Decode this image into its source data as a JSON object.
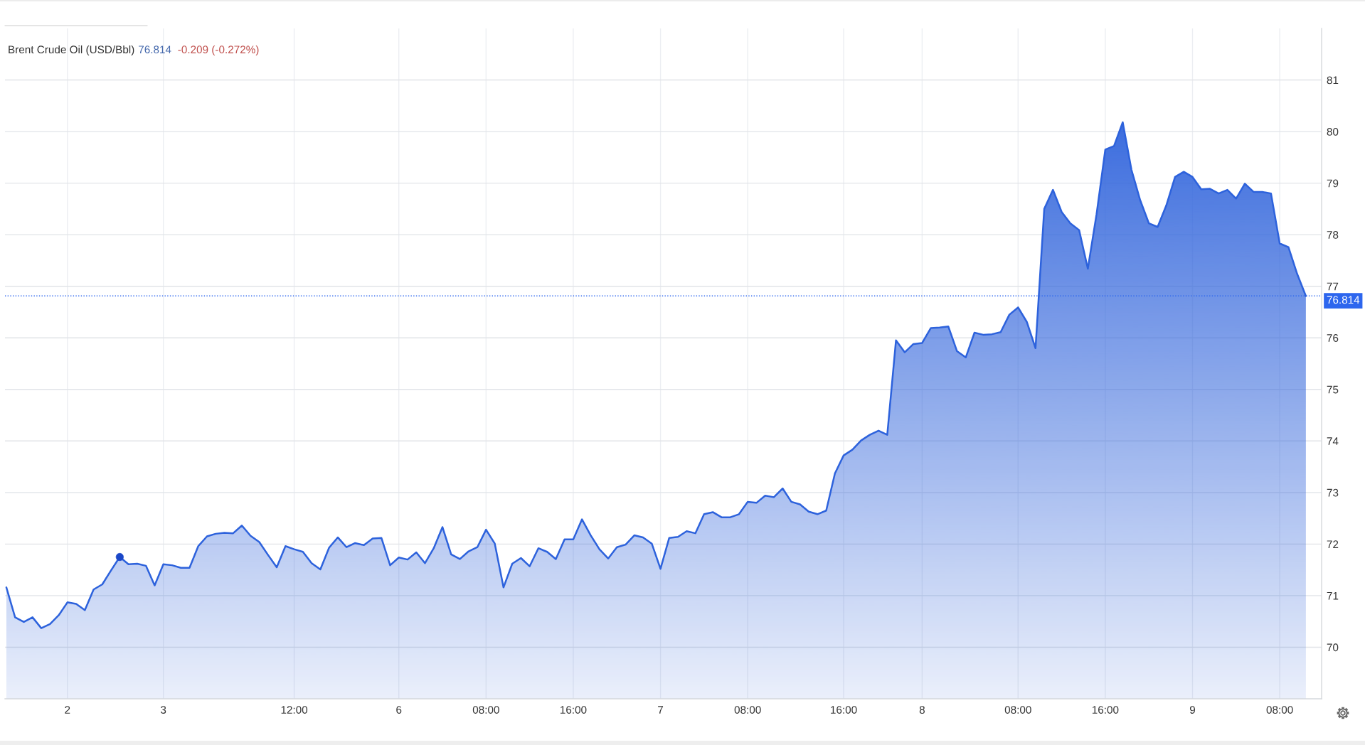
{
  "chart_data": {
    "type": "area",
    "title": "Brent Crude Oil (USD/Bbl)",
    "annotations": [
      "76.814",
      "-0.209 (-0.272%)"
    ],
    "categories": [
      null,
      null,
      null,
      null,
      null,
      null,
      null,
      "2",
      null,
      null,
      null,
      null,
      null,
      null,
      null,
      null,
      null,
      null,
      "3",
      null,
      null,
      null,
      null,
      null,
      null,
      null,
      null,
      null,
      null,
      null,
      null,
      null,
      null,
      "12:00",
      null,
      null,
      null,
      null,
      null,
      null,
      null,
      null,
      null,
      null,
      null,
      "6",
      null,
      null,
      null,
      null,
      null,
      null,
      null,
      null,
      null,
      "08:00",
      null,
      null,
      null,
      null,
      null,
      null,
      null,
      null,
      null,
      "16:00",
      null,
      null,
      null,
      null,
      null,
      null,
      null,
      null,
      null,
      "7",
      null,
      null,
      null,
      null,
      null,
      null,
      null,
      null,
      null,
      "08:00",
      null,
      null,
      null,
      null,
      null,
      null,
      null,
      null,
      null,
      null,
      "16:00",
      null,
      null,
      null,
      null,
      null,
      null,
      null,
      null,
      "8",
      null,
      null,
      null,
      null,
      null,
      null,
      null,
      null,
      null,
      null,
      "08:00",
      null,
      null,
      null,
      null,
      null,
      null,
      null,
      null,
      null,
      "16:00",
      null,
      null,
      null,
      null,
      null,
      null,
      null,
      null,
      null,
      "9",
      null,
      null,
      null,
      null,
      null,
      null,
      null,
      null,
      null,
      "08:00",
      null,
      null,
      null
    ],
    "series": [
      {
        "color": "#2d62dc",
        "values": [
          71.16,
          70.58,
          70.49,
          70.58,
          70.37,
          70.45,
          70.62,
          70.87,
          70.84,
          70.72,
          71.12,
          71.22,
          71.49,
          71.75,
          71.61,
          71.62,
          71.58,
          71.2,
          71.61,
          71.59,
          71.54,
          71.54,
          71.96,
          72.15,
          72.2,
          72.22,
          72.21,
          72.36,
          72.16,
          72.04,
          71.79,
          71.55,
          71.96,
          71.9,
          71.85,
          71.63,
          71.51,
          71.93,
          72.13,
          71.94,
          72.02,
          71.98,
          72.11,
          72.12,
          71.59,
          71.74,
          71.7,
          71.84,
          71.63,
          71.92,
          72.33,
          71.8,
          71.71,
          71.86,
          71.94,
          72.28,
          72.01,
          71.16,
          71.62,
          71.73,
          71.57,
          71.92,
          71.85,
          71.71,
          72.09,
          72.09,
          72.48,
          72.17,
          71.9,
          71.72,
          71.94,
          71.99,
          72.17,
          72.13,
          72.01,
          71.52,
          72.12,
          72.14,
          72.25,
          72.21,
          72.58,
          72.62,
          72.52,
          72.52,
          72.58,
          72.82,
          72.8,
          72.94,
          72.91,
          73.08,
          72.82,
          72.77,
          72.63,
          72.58,
          72.65,
          73.37,
          73.72,
          73.83,
          74.01,
          74.12,
          74.2,
          74.12,
          75.95,
          75.72,
          75.88,
          75.9,
          76.19,
          76.2,
          76.22,
          75.74,
          75.62,
          76.1,
          76.06,
          76.07,
          76.11,
          76.45,
          76.59,
          76.31,
          75.8,
          78.5,
          78.87,
          78.44,
          78.22,
          78.09,
          77.34,
          78.4,
          79.65,
          79.72,
          80.18,
          79.26,
          78.67,
          78.22,
          78.15,
          78.57,
          79.12,
          79.22,
          79.12,
          78.88,
          78.89,
          78.8,
          78.87,
          78.7,
          78.99,
          78.83,
          78.83,
          78.8,
          77.83,
          77.76,
          77.24,
          76.81
        ]
      },
      {
        "type": "scatter",
        "color": "#1a47c8",
        "marker": "circle",
        "values": [
          null,
          null,
          null,
          null,
          null,
          null,
          null,
          null,
          null,
          null,
          null,
          null,
          null,
          71.75,
          null,
          null,
          null,
          null,
          null,
          null,
          null,
          null,
          null,
          null,
          null,
          null,
          null,
          null,
          null,
          null,
          null,
          null,
          null,
          null,
          null,
          null,
          null,
          null,
          null,
          null,
          null,
          null,
          null,
          null,
          null,
          null,
          null,
          null,
          null,
          null,
          null,
          null,
          null,
          null,
          null,
          null,
          null,
          null,
          null,
          null,
          null,
          null,
          null,
          null,
          null,
          null,
          null,
          null,
          null,
          null,
          null,
          null,
          null,
          null,
          null,
          null,
          null,
          null,
          null,
          null,
          null,
          null,
          null,
          null,
          null,
          null,
          null,
          null,
          null,
          null,
          null,
          null,
          null,
          null,
          null,
          null,
          null,
          null,
          null,
          null,
          null,
          null,
          null,
          null,
          null,
          null,
          null,
          null,
          null,
          null,
          null,
          null,
          null,
          null,
          null,
          null,
          null,
          null,
          null,
          null,
          null,
          null,
          null,
          null,
          null,
          null,
          null,
          null,
          null,
          null,
          null,
          null,
          null,
          null,
          null,
          null,
          null,
          null,
          null,
          null,
          null,
          null,
          null,
          null,
          null,
          null,
          null,
          null,
          null,
          null
        ]
      }
    ],
    "ylim": [
      69,
      82
    ],
    "yticks": [
      70,
      71,
      72,
      73,
      74,
      75,
      76,
      77,
      78,
      79,
      80,
      81
    ],
    "ref_lines": [
      {
        "axis": "y",
        "value": 76.814,
        "label": "76.814",
        "color": "#2d66ee",
        "line_style": "dotted"
      }
    ],
    "grid": true
  }
}
